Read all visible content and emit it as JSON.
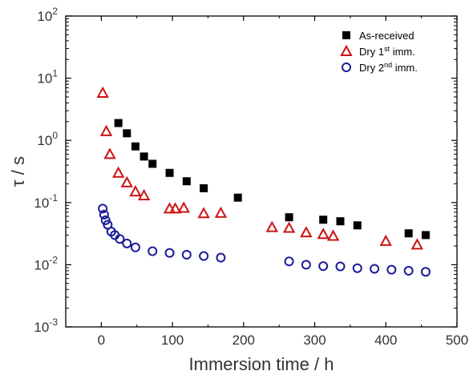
{
  "chart_data": {
    "type": "scatter",
    "xlabel": "Immersion time / h",
    "ylabel": "τ / s",
    "xlim": [
      -50,
      500
    ],
    "ylim": [
      0.001,
      100
    ],
    "yscale": "log",
    "x_ticks": [
      0,
      100,
      200,
      300,
      400,
      500
    ],
    "y_ticks": [
      {
        "value": 0.001,
        "base": "10",
        "exp": "-3"
      },
      {
        "value": 0.01,
        "base": "10",
        "exp": "-2"
      },
      {
        "value": 0.1,
        "base": "10",
        "exp": "-1"
      },
      {
        "value": 1,
        "base": "10",
        "exp": "0"
      },
      {
        "value": 10,
        "base": "10",
        "exp": "1"
      },
      {
        "value": 100,
        "base": "10",
        "exp": "2"
      }
    ],
    "grid": false,
    "legend_position": "top-right",
    "series": [
      {
        "name": "As-received",
        "marker": "square",
        "color": "#000000",
        "x": [
          24,
          36,
          48,
          60,
          72,
          96,
          120,
          144,
          192,
          264,
          312,
          336,
          360,
          432,
          456
        ],
        "y": [
          1.9,
          1.3,
          0.8,
          0.55,
          0.42,
          0.3,
          0.22,
          0.17,
          0.12,
          0.058,
          0.053,
          0.05,
          0.043,
          0.032,
          0.03
        ]
      },
      {
        "name": "Dry 1",
        "name_sup": "st",
        "name_suffix": " imm.",
        "marker": "triangle",
        "color": "#cc1111",
        "x": [
          2,
          7,
          12,
          24,
          36,
          48,
          60,
          96,
          104,
          116,
          144,
          168,
          240,
          264,
          288,
          312,
          326,
          400,
          444
        ],
        "y": [
          5.8,
          1.4,
          0.6,
          0.3,
          0.21,
          0.15,
          0.13,
          0.08,
          0.08,
          0.082,
          0.067,
          0.068,
          0.04,
          0.039,
          0.033,
          0.031,
          0.029,
          0.024,
          0.021
        ]
      },
      {
        "name": "Dry 2",
        "name_sup": "nd",
        "name_suffix": " imm.",
        "marker": "circle",
        "color": "#1a1a99",
        "x": [
          2,
          4,
          6,
          9,
          14,
          19,
          26,
          36,
          48,
          72,
          96,
          120,
          144,
          168,
          264,
          288,
          312,
          336,
          360,
          384,
          408,
          432,
          456
        ],
        "y": [
          0.08,
          0.064,
          0.052,
          0.044,
          0.034,
          0.03,
          0.026,
          0.022,
          0.019,
          0.0165,
          0.0155,
          0.0145,
          0.0138,
          0.013,
          0.0113,
          0.01,
          0.0095,
          0.0094,
          0.0088,
          0.0086,
          0.0083,
          0.008,
          0.0077
        ]
      }
    ]
  }
}
